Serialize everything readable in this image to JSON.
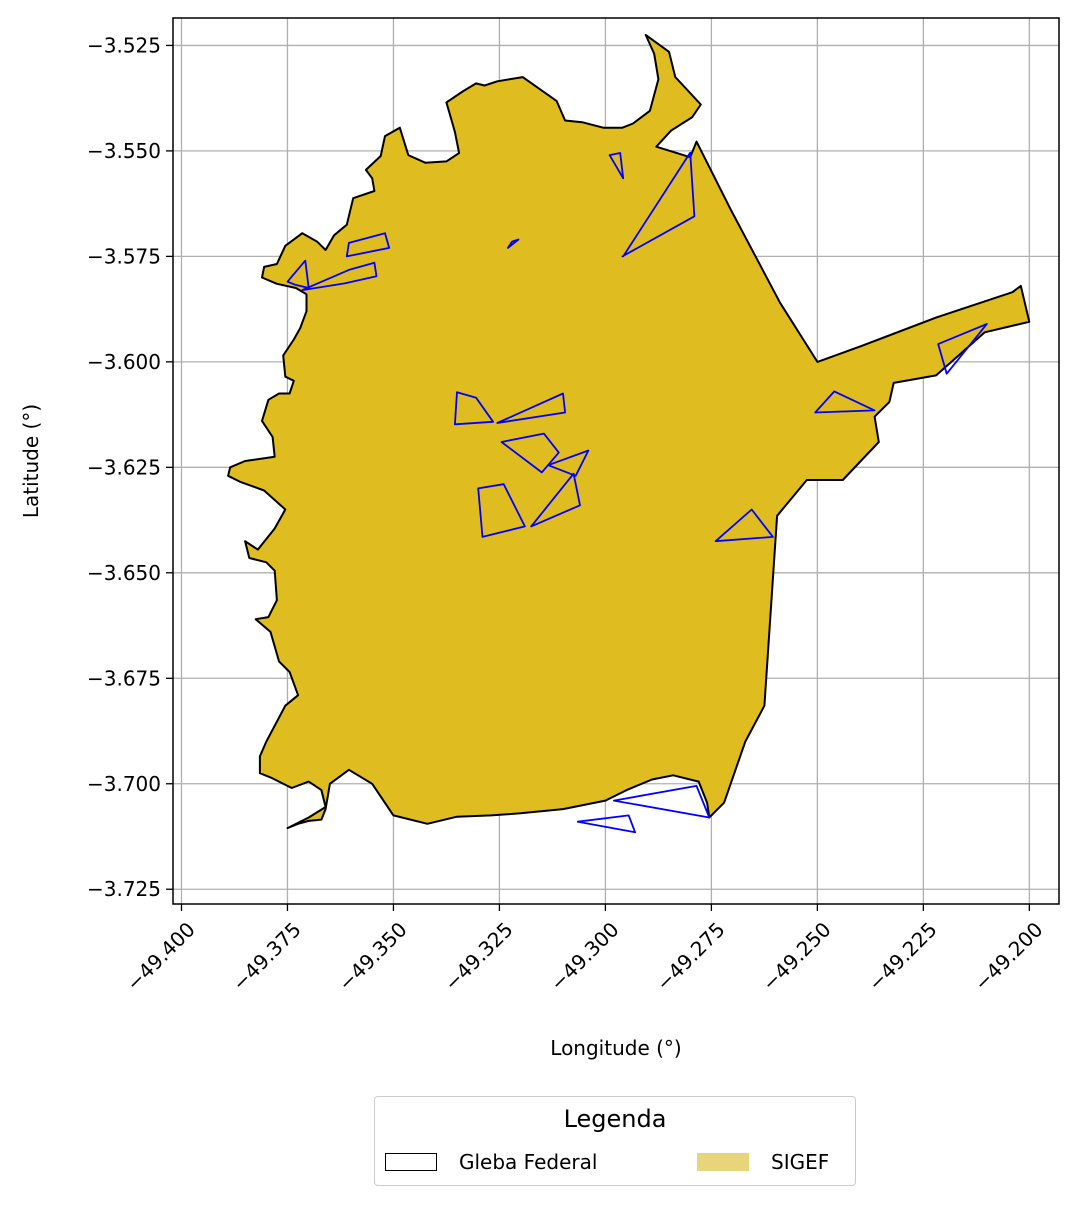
{
  "chart_data": {
    "type": "map",
    "xlabel": "Longitude (°)",
    "ylabel": "Latitude (°)",
    "xlim": [
      -49.402,
      -49.193
    ],
    "ylim": [
      -3.7285,
      -3.5185
    ],
    "grid": true,
    "x_ticks": [
      "−49.400",
      "−49.375",
      "−49.350",
      "−49.325",
      "−49.300",
      "−49.275",
      "−49.250",
      "−49.225",
      "−49.200"
    ],
    "x_tick_values": [
      -49.4,
      -49.375,
      -49.35,
      -49.325,
      -49.3,
      -49.275,
      -49.25,
      -49.225,
      -49.2
    ],
    "y_ticks": [
      "−3.525",
      "−3.550",
      "−3.575",
      "−3.600",
      "−3.625",
      "−3.650",
      "−3.675",
      "−3.700",
      "−3.725"
    ],
    "y_tick_values": [
      -3.525,
      -3.55,
      -3.575,
      -3.6,
      -3.625,
      -3.65,
      -3.675,
      -3.7,
      -3.725
    ],
    "legend": {
      "title": "Legenda",
      "placement": "bottom-center",
      "entries": [
        {
          "label": "Gleba Federal",
          "style": "outline"
        },
        {
          "label": "SIGEF",
          "style": "fill"
        }
      ]
    },
    "colors": {
      "gleba_fill": "#dfbc20",
      "gleba_edge": "#000000",
      "sigef_edge": "#0000ff",
      "legend_sigef_patch": "#e8d57a",
      "grid": "#b0b0b0"
    },
    "gleba": [
      [
        -49.375,
        -3.7105
      ],
      [
        -49.3725,
        -3.7095
      ],
      [
        -49.37,
        -3.7088
      ],
      [
        -49.367,
        -3.7085
      ],
      [
        -49.366,
        -3.706
      ],
      [
        -49.365,
        -3.7
      ],
      [
        -49.3605,
        -3.6967
      ],
      [
        -49.355,
        -3.7
      ],
      [
        -49.35,
        -3.7075
      ],
      [
        -49.342,
        -3.7095
      ],
      [
        -49.335,
        -3.7078
      ],
      [
        -49.327,
        -3.7075
      ],
      [
        -49.32,
        -3.707
      ],
      [
        -49.31,
        -3.706
      ],
      [
        -49.3,
        -3.704
      ],
      [
        -49.295,
        -3.7015
      ],
      [
        -49.289,
        -3.699
      ],
      [
        -49.284,
        -3.698
      ],
      [
        -49.278,
        -3.6995
      ],
      [
        -49.276,
        -3.7045
      ],
      [
        -49.2755,
        -3.708
      ],
      [
        -49.272,
        -3.7045
      ],
      [
        -49.267,
        -3.69
      ],
      [
        -49.2625,
        -3.6815
      ],
      [
        -49.2595,
        -3.6365
      ],
      [
        -49.2525,
        -3.628
      ],
      [
        -49.244,
        -3.628
      ],
      [
        -49.2355,
        -3.619
      ],
      [
        -49.2365,
        -3.613
      ],
      [
        -49.233,
        -3.6095
      ],
      [
        -49.232,
        -3.605
      ],
      [
        -49.222,
        -3.6032
      ],
      [
        -49.2105,
        -3.593
      ],
      [
        -49.2,
        -3.5905
      ],
      [
        -49.202,
        -3.582
      ],
      [
        -49.204,
        -3.5835
      ],
      [
        -49.222,
        -3.5895
      ],
      [
        -49.2395,
        -3.5962
      ],
      [
        -49.2485,
        -3.5995
      ],
      [
        -49.25,
        -3.6
      ],
      [
        -49.2588,
        -3.586
      ],
      [
        -49.2705,
        -3.5638
      ],
      [
        -49.2785,
        -3.5478
      ],
      [
        -49.28,
        -3.5515
      ],
      [
        -49.288,
        -3.549
      ],
      [
        -49.2845,
        -3.5452
      ],
      [
        -49.2795,
        -3.542
      ],
      [
        -49.2775,
        -3.539
      ],
      [
        -49.2835,
        -3.5325
      ],
      [
        -49.285,
        -3.5265
      ],
      [
        -49.2905,
        -3.5225
      ],
      [
        -49.2885,
        -3.527
      ],
      [
        -49.2875,
        -3.533
      ],
      [
        -49.2895,
        -3.5405
      ],
      [
        -49.2935,
        -3.5435
      ],
      [
        -49.296,
        -3.5445
      ],
      [
        -49.3005,
        -3.5445
      ],
      [
        -49.3055,
        -3.5432
      ],
      [
        -49.3095,
        -3.5428
      ],
      [
        -49.3115,
        -3.5382
      ],
      [
        -49.3195,
        -3.5325
      ],
      [
        -49.3255,
        -3.5335
      ],
      [
        -49.3285,
        -3.5345
      ],
      [
        -49.3305,
        -3.534
      ],
      [
        -49.3335,
        -3.5358
      ],
      [
        -49.3375,
        -3.5385
      ],
      [
        -49.3355,
        -3.5455
      ],
      [
        -49.3345,
        -3.5505
      ],
      [
        -49.3375,
        -3.5525
      ],
      [
        -49.3425,
        -3.5528
      ],
      [
        -49.3465,
        -3.551
      ],
      [
        -49.3485,
        -3.5445
      ],
      [
        -49.352,
        -3.5465
      ],
      [
        -49.353,
        -3.5512
      ],
      [
        -49.3565,
        -3.5545
      ],
      [
        -49.355,
        -3.5565
      ],
      [
        -49.3545,
        -3.5595
      ],
      [
        -49.3595,
        -3.5612
      ],
      [
        -49.361,
        -3.5675
      ],
      [
        -49.364,
        -3.57
      ],
      [
        -49.366,
        -3.5735
      ],
      [
        -49.368,
        -3.5715
      ],
      [
        -49.3715,
        -3.5695
      ],
      [
        -49.3755,
        -3.5725
      ],
      [
        -49.3775,
        -3.5768
      ],
      [
        -49.3805,
        -3.5775
      ],
      [
        -49.381,
        -3.58
      ],
      [
        -49.3775,
        -3.5815
      ],
      [
        -49.373,
        -3.5825
      ],
      [
        -49.3705,
        -3.584
      ],
      [
        -49.3705,
        -3.588
      ],
      [
        -49.372,
        -3.592
      ],
      [
        -49.3735,
        -3.5947
      ],
      [
        -49.376,
        -3.5985
      ],
      [
        -49.3755,
        -3.6035
      ],
      [
        -49.3735,
        -3.6045
      ],
      [
        -49.3745,
        -3.6075
      ],
      [
        -49.377,
        -3.6075
      ],
      [
        -49.3795,
        -3.609
      ],
      [
        -49.381,
        -3.614
      ],
      [
        -49.3785,
        -3.6178
      ],
      [
        -49.378,
        -3.6225
      ],
      [
        -49.385,
        -3.6235
      ],
      [
        -49.3885,
        -3.625
      ],
      [
        -49.389,
        -3.627
      ],
      [
        -49.386,
        -3.6285
      ],
      [
        -49.3805,
        -3.6305
      ],
      [
        -49.3755,
        -3.635
      ],
      [
        -49.378,
        -3.6395
      ],
      [
        -49.382,
        -3.6445
      ],
      [
        -49.385,
        -3.6425
      ],
      [
        -49.384,
        -3.6465
      ],
      [
        -49.38,
        -3.6475
      ],
      [
        -49.378,
        -3.6495
      ],
      [
        -49.3775,
        -3.6565
      ],
      [
        -49.3795,
        -3.6605
      ],
      [
        -49.3825,
        -3.661
      ],
      [
        -49.379,
        -3.664
      ],
      [
        -49.377,
        -3.671
      ],
      [
        -49.3745,
        -3.6735
      ],
      [
        -49.3725,
        -3.679
      ],
      [
        -49.3755,
        -3.6815
      ],
      [
        -49.38,
        -3.69
      ],
      [
        -49.3815,
        -3.6935
      ],
      [
        -49.3815,
        -3.6975
      ],
      [
        -49.379,
        -3.6985
      ],
      [
        -49.374,
        -3.701
      ],
      [
        -49.37,
        -3.6995
      ],
      [
        -49.367,
        -3.7015
      ],
      [
        -49.366,
        -3.7055
      ],
      [
        -49.37,
        -3.708
      ],
      [
        -49.375,
        -3.7105
      ]
    ],
    "sigef": [
      [
        [
          -49.375,
          -3.581
        ],
        [
          -49.3733,
          -3.5817
        ],
        [
          -49.37,
          -3.5825
        ],
        [
          -49.3708,
          -3.576
        ],
        [
          -49.375,
          -3.581
        ]
      ],
      [
        [
          -49.3715,
          -3.583
        ],
        [
          -49.3615,
          -3.5814
        ],
        [
          -49.354,
          -3.5797
        ],
        [
          -49.3545,
          -3.5765
        ],
        [
          -49.3605,
          -3.5782
        ],
        [
          -49.3715,
          -3.583
        ]
      ],
      [
        [
          -49.361,
          -3.575
        ],
        [
          -49.351,
          -3.573
        ],
        [
          -49.352,
          -3.5695
        ],
        [
          -49.3605,
          -3.5718
        ],
        [
          -49.361,
          -3.575
        ]
      ],
      [
        [
          -49.322,
          -3.5715
        ],
        [
          -49.3205,
          -3.571
        ],
        [
          -49.323,
          -3.573
        ],
        [
          -49.322,
          -3.5715
        ]
      ],
      [
        [
          -49.296,
          -3.575
        ],
        [
          -49.279,
          -3.5655
        ],
        [
          -49.28,
          -3.5504
        ],
        [
          -49.2958,
          -3.575
        ]
      ],
      [
        [
          -49.299,
          -3.551
        ],
        [
          -49.2965,
          -3.5505
        ],
        [
          -49.2958,
          -3.5565
        ],
        [
          -49.299,
          -3.551
        ]
      ],
      [
        [
          -49.3265,
          -3.6142
        ],
        [
          -49.3305,
          -3.6085
        ],
        [
          -49.335,
          -3.6072
        ],
        [
          -49.3355,
          -3.6148
        ],
        [
          -49.3265,
          -3.6142
        ]
      ],
      [
        [
          -49.3255,
          -3.6145
        ],
        [
          -49.31,
          -3.6075
        ],
        [
          -49.3095,
          -3.612
        ],
        [
          -49.3255,
          -3.6145
        ]
      ],
      [
        [
          -49.3245,
          -3.619
        ],
        [
          -49.3145,
          -3.617
        ],
        [
          -49.311,
          -3.6215
        ],
        [
          -49.315,
          -3.6262
        ],
        [
          -49.3245,
          -3.619
        ]
      ],
      [
        [
          -49.3135,
          -3.6245
        ],
        [
          -49.304,
          -3.621
        ],
        [
          -49.307,
          -3.627
        ],
        [
          -49.3135,
          -3.6245
        ]
      ],
      [
        [
          -49.33,
          -3.63
        ],
        [
          -49.329,
          -3.6415
        ],
        [
          -49.319,
          -3.639
        ],
        [
          -49.324,
          -3.629
        ],
        [
          -49.33,
          -3.63
        ]
      ],
      [
        [
          -49.3175,
          -3.639
        ],
        [
          -49.306,
          -3.634
        ],
        [
          -49.3075,
          -3.6265
        ],
        [
          -49.3175,
          -3.639
        ]
      ],
      [
        [
          -49.2365,
          -3.6115
        ],
        [
          -49.246,
          -3.607
        ],
        [
          -49.2505,
          -3.612
        ],
        [
          -49.2365,
          -3.6115
        ]
      ],
      [
        [
          -49.21,
          -3.591
        ],
        [
          -49.2215,
          -3.5958
        ],
        [
          -49.2195,
          -3.6028
        ],
        [
          -49.21,
          -3.591
        ]
      ],
      [
        [
          -49.2605,
          -3.6415
        ],
        [
          -49.2655,
          -3.635
        ],
        [
          -49.274,
          -3.6425
        ],
        [
          -49.2605,
          -3.6415
        ]
      ],
      [
        [
          -49.298,
          -3.704
        ],
        [
          -49.2785,
          -3.7005
        ],
        [
          -49.2755,
          -3.708
        ],
        [
          -49.298,
          -3.704
        ]
      ],
      [
        [
          -49.3065,
          -3.709
        ],
        [
          -49.2945,
          -3.7075
        ],
        [
          -49.293,
          -3.7115
        ],
        [
          -49.3065,
          -3.709
        ]
      ]
    ]
  }
}
